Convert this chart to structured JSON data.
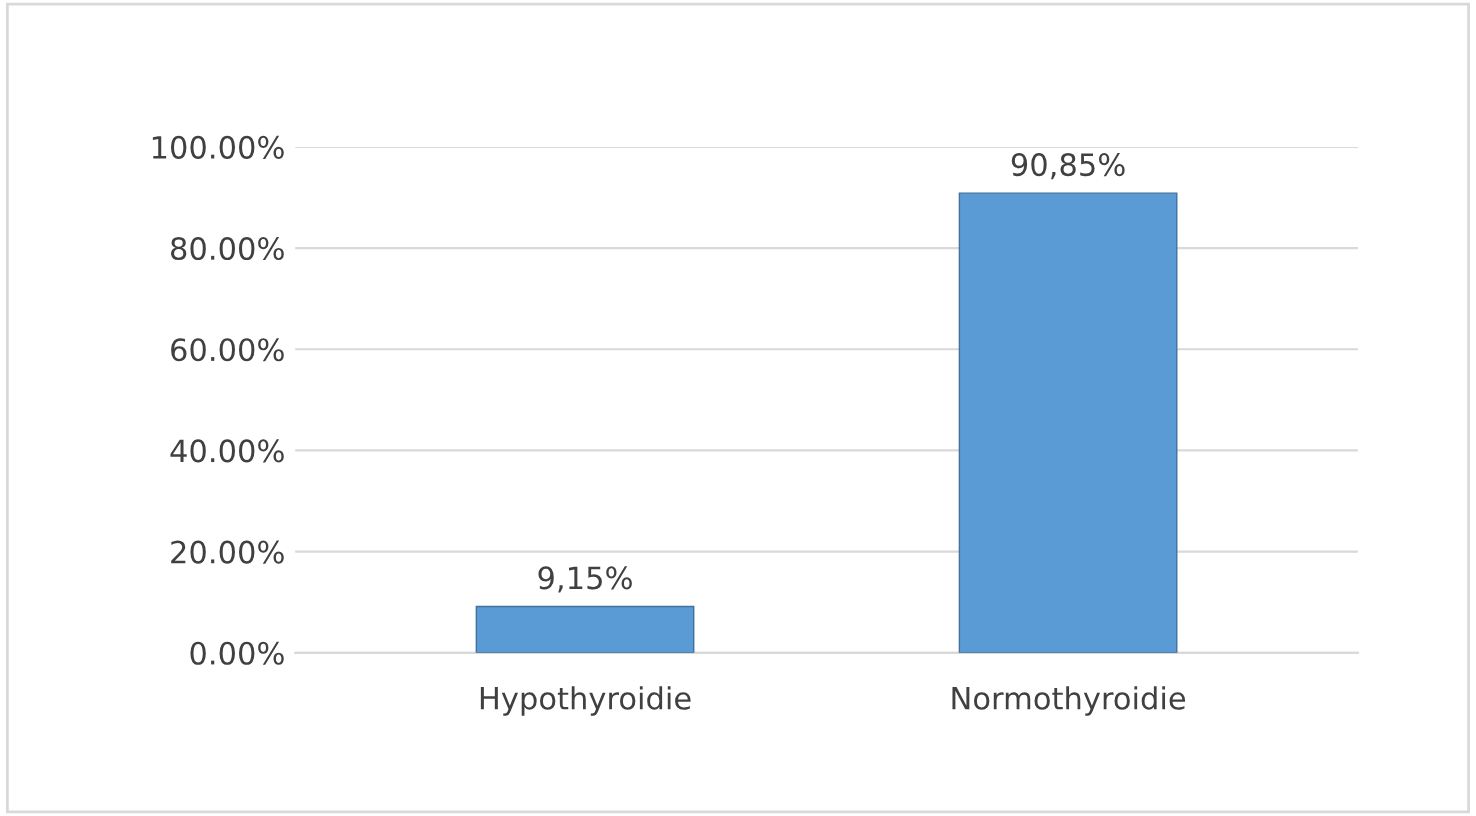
{
  "chart_data": {
    "type": "bar",
    "categories": [
      "Hypothyroidie",
      "Normothyroidie"
    ],
    "values": [
      9.15,
      90.85
    ],
    "value_labels": [
      "9,15%",
      "90,85%"
    ],
    "color": "#5b9bd5",
    "ylim": [
      0,
      100
    ],
    "yticks": [
      {
        "value": 0,
        "label": "0.00%"
      },
      {
        "value": 20,
        "label": "20.00%"
      },
      {
        "value": 40,
        "label": "40.00%"
      },
      {
        "value": 60,
        "label": "60.00%"
      },
      {
        "value": 80,
        "label": "80.00%"
      },
      {
        "value": 100,
        "label": "100.00%"
      }
    ],
    "grid": "y",
    "legend": false
  }
}
